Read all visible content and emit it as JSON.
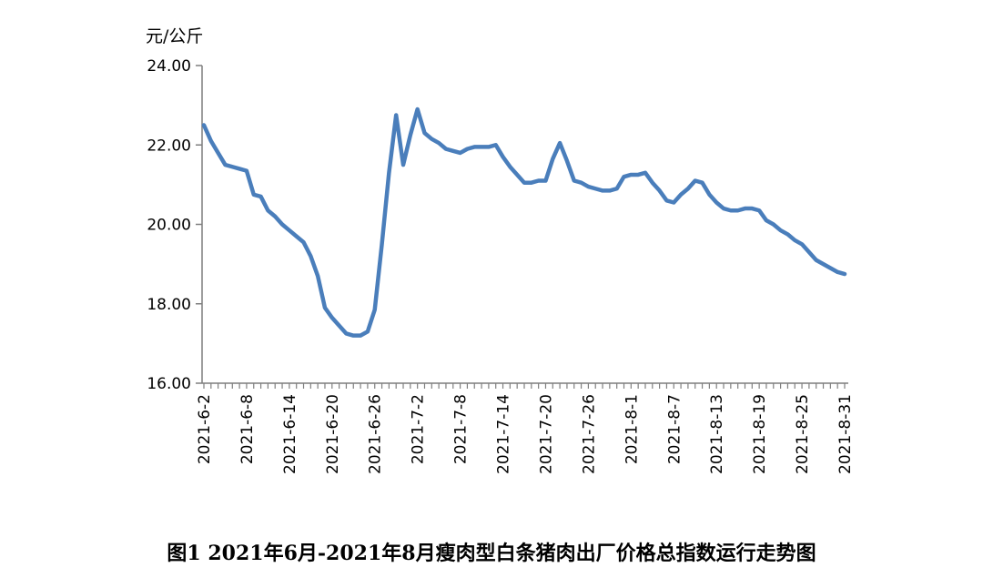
{
  "chart_data": {
    "type": "line",
    "title": "图1 2021年6月-2021年8月瘦肉型白条猪肉出厂价格总指数运行走势图",
    "unit_label": "元/公斤",
    "xlabel": "",
    "ylabel": "",
    "ylim": [
      16,
      24
    ],
    "y_ticks": [
      "16.00",
      "18.00",
      "20.00",
      "22.00",
      "24.00"
    ],
    "x_tick_labels": [
      "2021-6-2",
      "2021-6-8",
      "2021-6-14",
      "2021-6-20",
      "2021-6-26",
      "2021-7-2",
      "2021-7-8",
      "2021-7-14",
      "2021-7-20",
      "2021-7-26",
      "2021-8-1",
      "2021-8-7",
      "2021-8-13",
      "2021-8-19",
      "2021-8-25",
      "2021-8-31"
    ],
    "legend": "none",
    "grid": false,
    "line_color": "#4a7ebb",
    "series": [
      {
        "x": [
          "2021-6-2",
          "2021-6-3",
          "2021-6-4",
          "2021-6-5",
          "2021-6-6",
          "2021-6-7",
          "2021-6-8",
          "2021-6-9",
          "2021-6-10",
          "2021-6-11",
          "2021-6-12",
          "2021-6-13",
          "2021-6-14",
          "2021-6-15",
          "2021-6-16",
          "2021-6-17",
          "2021-6-18",
          "2021-6-19",
          "2021-6-20",
          "2021-6-21",
          "2021-6-22",
          "2021-6-23",
          "2021-6-24",
          "2021-6-25",
          "2021-6-26",
          "2021-6-27",
          "2021-6-28",
          "2021-6-29",
          "2021-6-30",
          "2021-7-1",
          "2021-7-2",
          "2021-7-3",
          "2021-7-4",
          "2021-7-5",
          "2021-7-6",
          "2021-7-7",
          "2021-7-8",
          "2021-7-9",
          "2021-7-10",
          "2021-7-11",
          "2021-7-12",
          "2021-7-13",
          "2021-7-14",
          "2021-7-15",
          "2021-7-16",
          "2021-7-17",
          "2021-7-18",
          "2021-7-19",
          "2021-7-20",
          "2021-7-21",
          "2021-7-22",
          "2021-7-23",
          "2021-7-24",
          "2021-7-25",
          "2021-7-26",
          "2021-7-27",
          "2021-7-28",
          "2021-7-29",
          "2021-7-30",
          "2021-7-31",
          "2021-8-1",
          "2021-8-2",
          "2021-8-3",
          "2021-8-4",
          "2021-8-5",
          "2021-8-6",
          "2021-8-7",
          "2021-8-8",
          "2021-8-9",
          "2021-8-10",
          "2021-8-11",
          "2021-8-12",
          "2021-8-13",
          "2021-8-14",
          "2021-8-15",
          "2021-8-16",
          "2021-8-17",
          "2021-8-18",
          "2021-8-19",
          "2021-8-20",
          "2021-8-21",
          "2021-8-22",
          "2021-8-23",
          "2021-8-24",
          "2021-8-25",
          "2021-8-26",
          "2021-8-27",
          "2021-8-28",
          "2021-8-29",
          "2021-8-30",
          "2021-8-31"
        ],
        "values": [
          22.5,
          22.1,
          21.8,
          21.5,
          21.45,
          21.4,
          21.35,
          20.75,
          20.7,
          20.35,
          20.2,
          20.0,
          19.85,
          19.7,
          19.55,
          19.2,
          18.7,
          17.9,
          17.65,
          17.45,
          17.25,
          17.2,
          17.2,
          17.3,
          17.85,
          19.5,
          21.3,
          22.75,
          21.5,
          22.25,
          22.9,
          22.3,
          22.15,
          22.05,
          21.9,
          21.85,
          21.8,
          21.9,
          21.95,
          21.95,
          21.95,
          22.0,
          21.7,
          21.45,
          21.25,
          21.05,
          21.05,
          21.1,
          21.1,
          21.65,
          22.05,
          21.6,
          21.1,
          21.05,
          20.95,
          20.9,
          20.85,
          20.85,
          20.9,
          21.2,
          21.25,
          21.25,
          21.3,
          21.05,
          20.85,
          20.6,
          20.55,
          20.75,
          20.9,
          21.1,
          21.05,
          20.75,
          20.55,
          20.4,
          20.35,
          20.35,
          20.4,
          20.4,
          20.35,
          20.1,
          20.0,
          19.85,
          19.75,
          19.6,
          19.5,
          19.3,
          19.1,
          19.0,
          18.9,
          18.8,
          18.75
        ]
      }
    ]
  }
}
